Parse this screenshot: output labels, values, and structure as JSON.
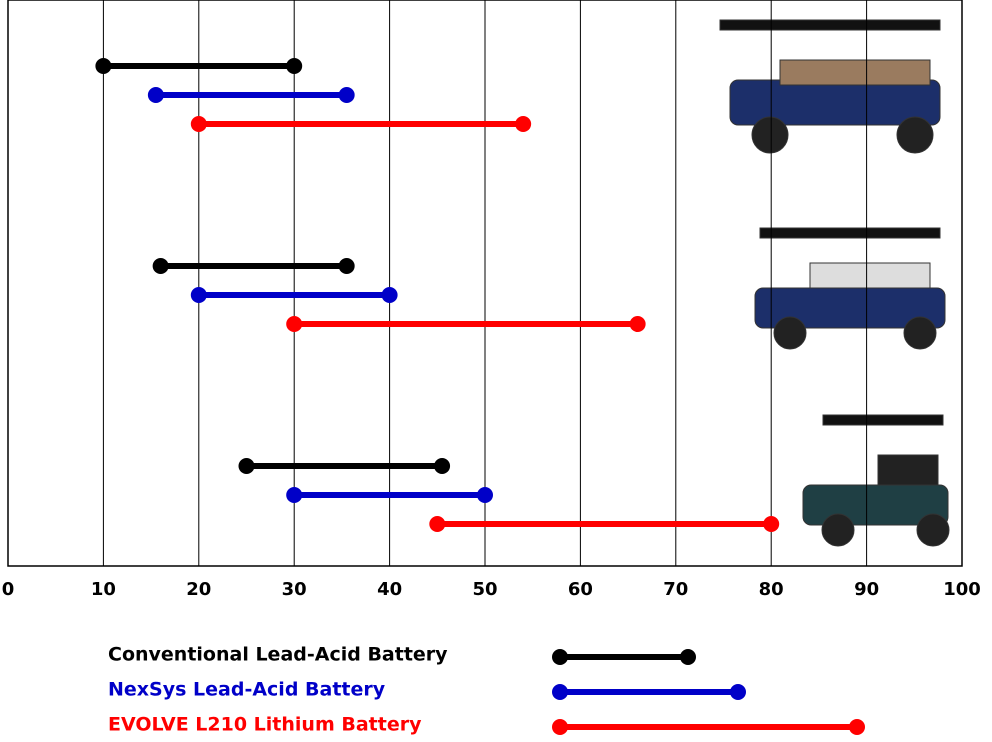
{
  "chart_data": {
    "type": "dumbbell",
    "categories": [
      null,
      null,
      null
    ],
    "series": [
      {
        "name": "Conventional Lead-Acid Battery",
        "color": "#000000",
        "low": [
          10,
          16,
          25
        ],
        "high": [
          30,
          35.5,
          45.5
        ]
      },
      {
        "name": "NexSys Lead-Acid Battery",
        "color": "#0000c8",
        "low": [
          15.5,
          20,
          30
        ],
        "high": [
          35.5,
          40,
          50
        ]
      },
      {
        "name": "EVOLVE L210 Lithium Battery",
        "color": "#ff0000",
        "low": [
          20,
          30,
          45
        ],
        "high": [
          54,
          66,
          80
        ]
      }
    ],
    "xlim": [
      0,
      100
    ],
    "xticks": [
      0,
      10,
      20,
      30,
      40,
      50,
      60,
      70,
      80,
      90,
      100
    ],
    "grid": true
  }
}
